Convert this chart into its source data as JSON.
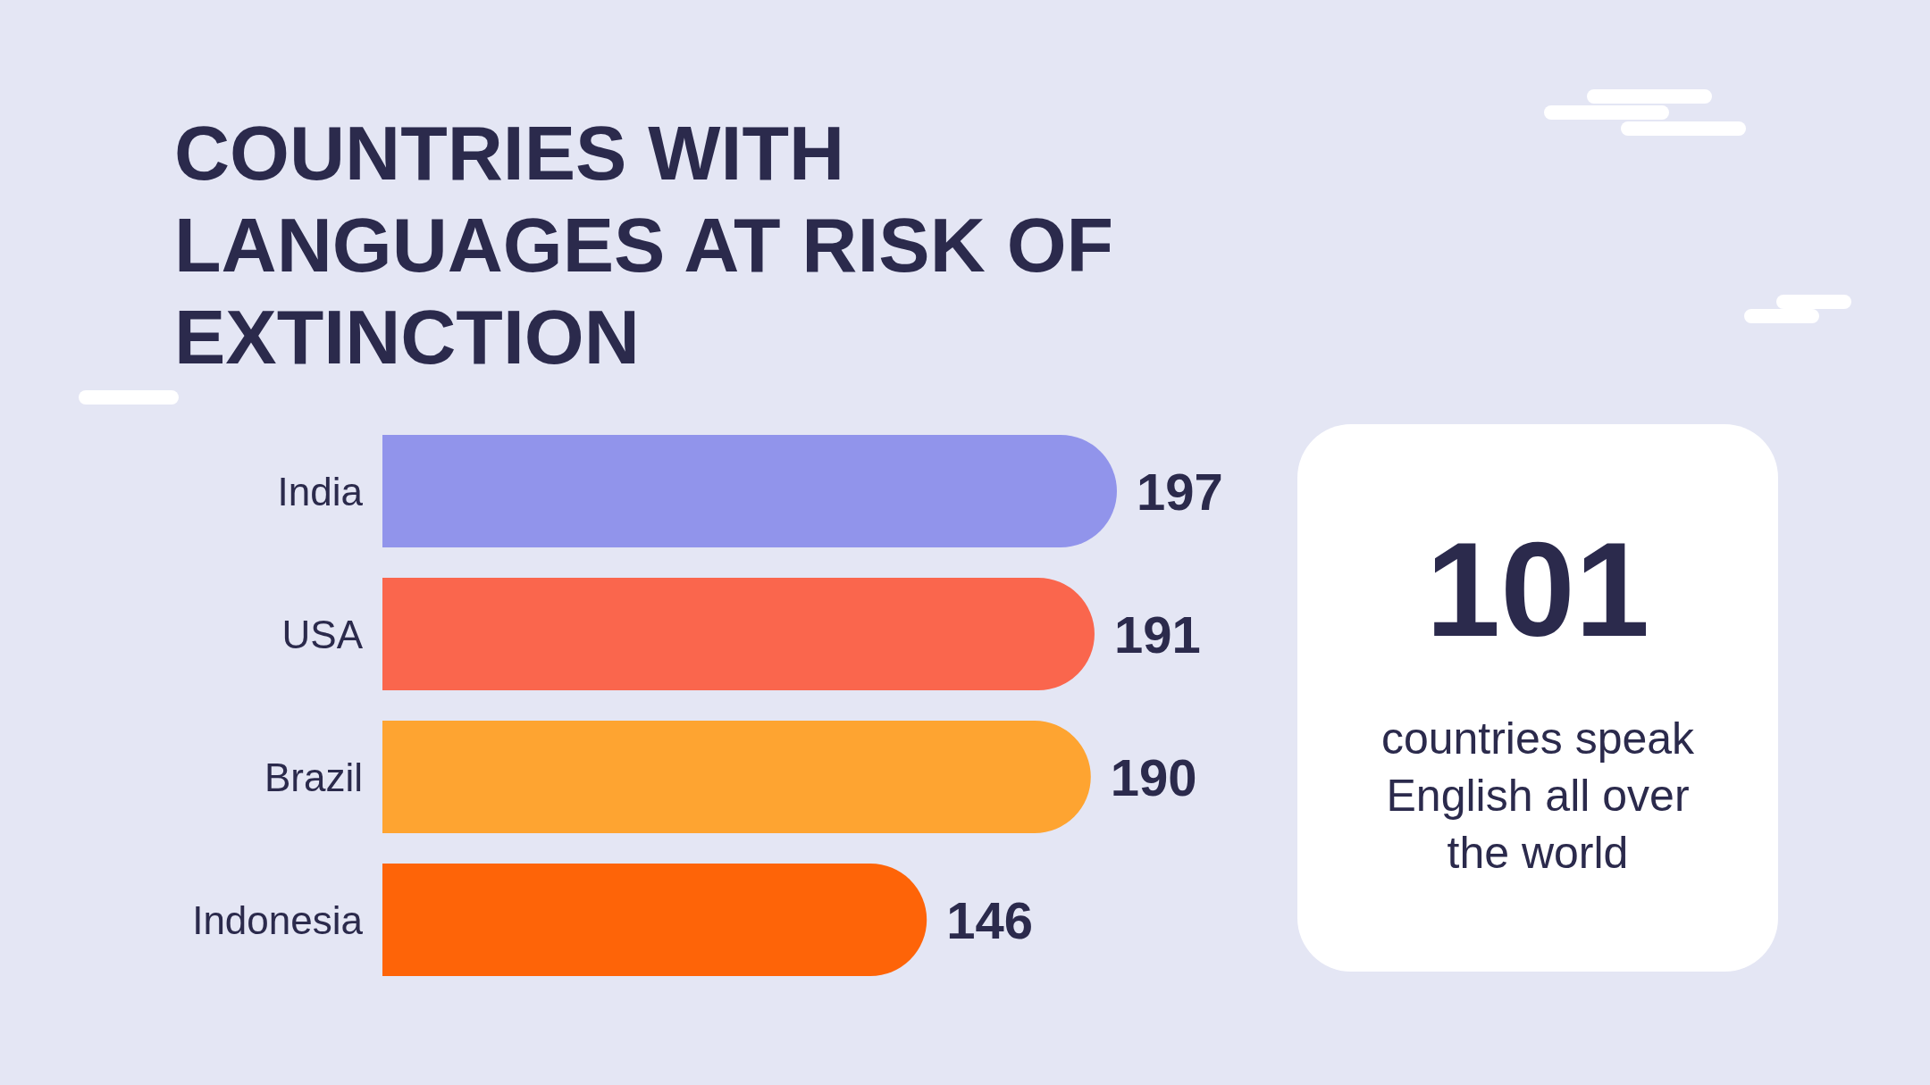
{
  "chart_data": [
    {
      "type": "bar",
      "orientation": "horizontal",
      "title": "COUNTRIES WITH LANGUAGES AT RISK OF EXTINCTION",
      "categories": [
        "India",
        "USA",
        "Brazil",
        "Indonesia"
      ],
      "values": [
        197,
        191,
        190,
        146
      ],
      "colors": [
        "#9194eb",
        "#fa664d",
        "#fea431",
        "#fe6408"
      ],
      "data_labels": true
    },
    {
      "type": "other",
      "title": "101",
      "annotations": [
        "countries speak English all over the world"
      ]
    }
  ]
}
